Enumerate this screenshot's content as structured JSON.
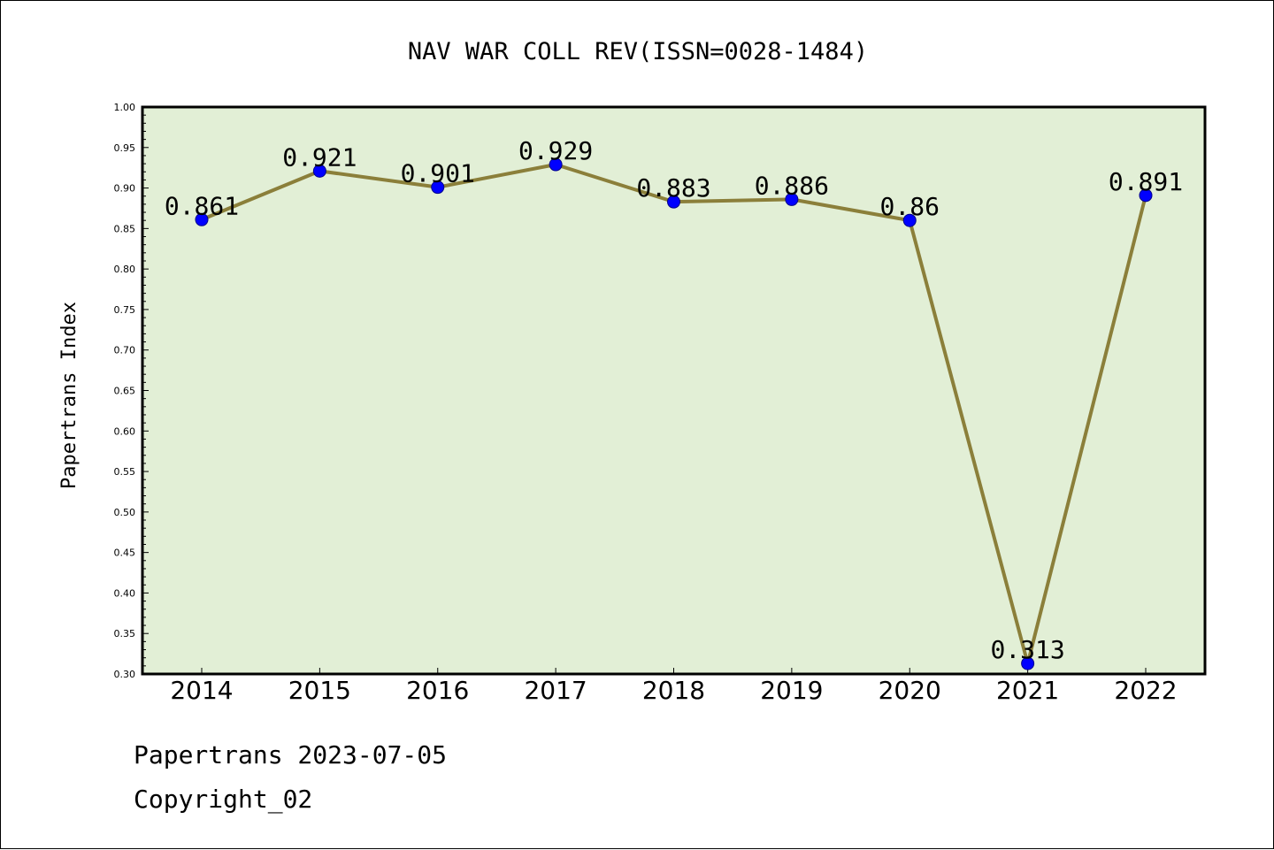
{
  "chart_data": {
    "type": "line",
    "title": "NAV WAR COLL REV(ISSN=0028-1484)",
    "xlabel": "",
    "ylabel": "Papertrans Index",
    "categories": [
      "2014",
      "2015",
      "2016",
      "2017",
      "2018",
      "2019",
      "2020",
      "2021",
      "2022"
    ],
    "series": [
      {
        "values": [
          0.861,
          0.921,
          0.901,
          0.929,
          0.883,
          0.886,
          0.86,
          0.313,
          0.891
        ],
        "data_labels": [
          "0.861",
          "0.921",
          "0.901",
          "0.929",
          "0.883",
          "0.886",
          "0.86",
          "0.313",
          "0.891"
        ]
      }
    ],
    "ylim": [
      0.3,
      1.0
    ],
    "yticks": [
      "0.30",
      "0.35",
      "0.40",
      "0.45",
      "0.50",
      "0.55",
      "0.60",
      "0.65",
      "0.70",
      "0.75",
      "0.80",
      "0.85",
      "0.90",
      "0.95",
      "1.00"
    ],
    "grid": false,
    "legend": "none",
    "colors": {
      "plot_background": "#e2efd6",
      "line": "#8b7f3a",
      "marker": "#0000ff"
    }
  },
  "footer": {
    "line1": "Papertrans 2023-07-05",
    "line2": "Copyright_02"
  }
}
